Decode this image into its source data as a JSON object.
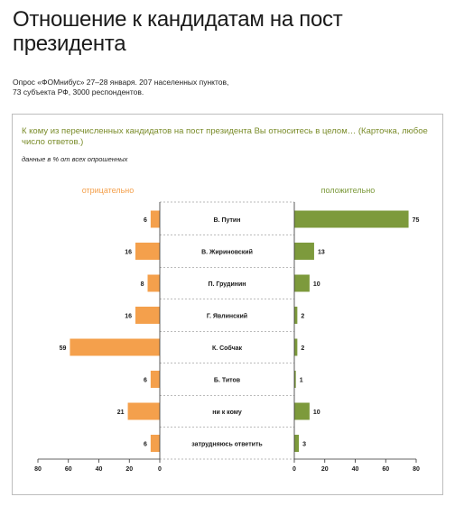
{
  "title": "Отношение к кандидатам на пост президента",
  "subtitle_line1": "Опрос «ФОМнибус» 27–28 января. 207 населенных пунктов,",
  "subtitle_line2": "73 субъекта РФ, 3000 респондентов.",
  "question": "К кому из перечисленных кандидатов на пост президента Вы относитесь в целом… (Карточка, любое число ответов.)",
  "note": "данные в % от всех опрошенных",
  "colors": {
    "negative": "#f4a04c",
    "positive": "#7d9a3c",
    "question": "#7a8c2a"
  },
  "chart_data": {
    "type": "bar",
    "orientation": "horizontal-diverging",
    "categories": [
      "В. Путин",
      "В. Жириновский",
      "П. Грудинин",
      "Г. Явлинский",
      "К. Собчак",
      "Б. Титов",
      "ни к кому",
      "затрудняюсь ответить"
    ],
    "series": [
      {
        "name": "отрицательно",
        "values": [
          6,
          16,
          8,
          16,
          59,
          6,
          21,
          6
        ]
      },
      {
        "name": "положительно",
        "values": [
          75,
          13,
          10,
          2,
          2,
          1,
          10,
          3
        ]
      }
    ],
    "xlim": [
      0,
      80
    ],
    "ticks": [
      "80",
      "60",
      "40",
      "20",
      "0"
    ],
    "ticks_right": [
      "0",
      "20",
      "40",
      "60",
      "80"
    ]
  }
}
